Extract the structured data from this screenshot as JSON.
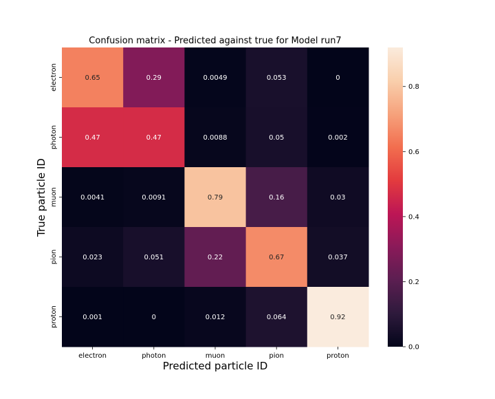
{
  "chart_data": {
    "type": "heatmap",
    "title": "Confusion matrix - Predicted against true for Model run7",
    "xlabel": "Predicted particle ID",
    "ylabel": "True particle ID",
    "x_categories": [
      "electron",
      "photon",
      "muon",
      "pion",
      "proton"
    ],
    "y_categories": [
      "electron",
      "photon",
      "muon",
      "pion",
      "proton"
    ],
    "cells": [
      [
        "0.65",
        "0.29",
        "0.0049",
        "0.053",
        "0"
      ],
      [
        "0.47",
        "0.47",
        "0.0088",
        "0.05",
        "0.002"
      ],
      [
        "0.0041",
        "0.0091",
        "0.79",
        "0.16",
        "0.03"
      ],
      [
        "0.023",
        "0.051",
        "0.22",
        "0.67",
        "0.037"
      ],
      [
        "0.001",
        "0",
        "0.012",
        "0.064",
        "0.92"
      ]
    ],
    "colorbar": {
      "range": [
        0,
        0.92
      ],
      "ticks": [
        "0.0",
        "0.2",
        "0.4",
        "0.6",
        "0.8"
      ],
      "colormap": "rocket",
      "stops": [
        "#03051a",
        "#2e1a3c",
        "#5b1e51",
        "#8a1a59",
        "#bd1655",
        "#e33b3e",
        "#f26e4f",
        "#f6a27c",
        "#f9cfac",
        "#faebdd"
      ]
    }
  }
}
